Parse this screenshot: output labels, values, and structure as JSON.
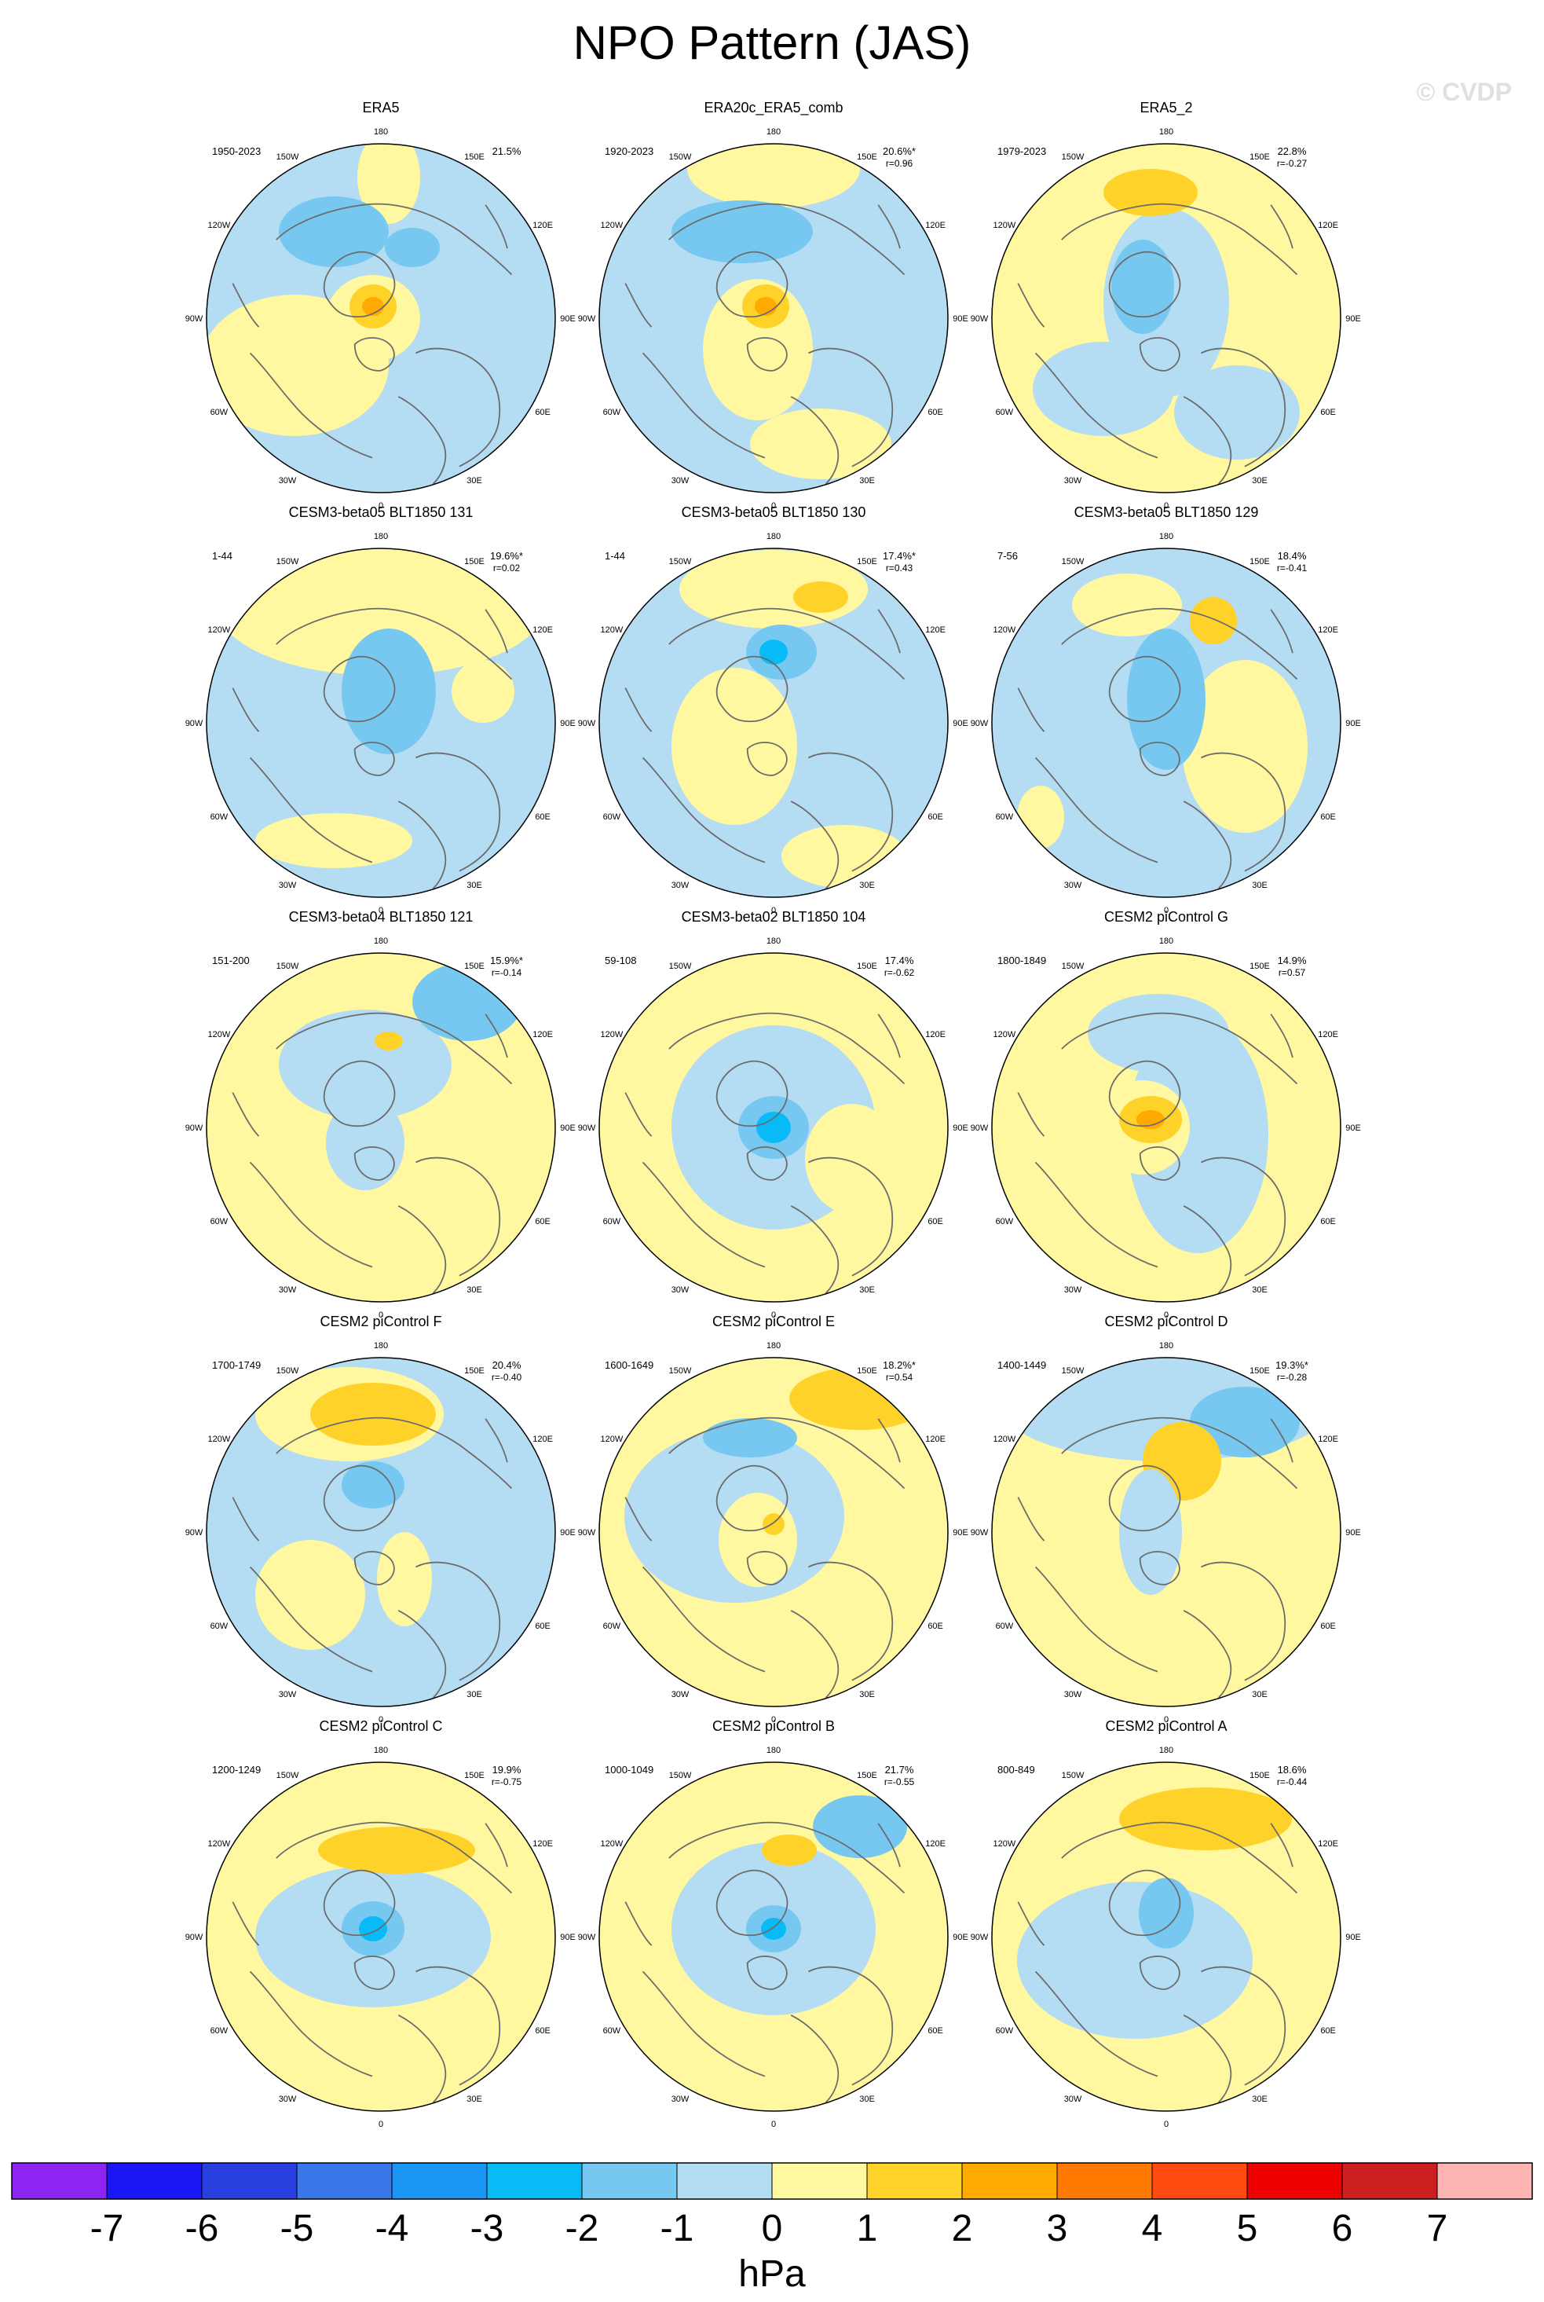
{
  "title": "NPO Pattern (JAS)",
  "watermark": "© CVDP",
  "colorbar": {
    "unit": "hPa",
    "tick_labels": [
      "-7",
      "-6",
      "-5",
      "-4",
      "-3",
      "-2",
      "-1",
      "0",
      "1",
      "2",
      "3",
      "4",
      "5",
      "6",
      "7"
    ],
    "colors": [
      "#8c24f2",
      "#1a16f5",
      "#2a3fe0",
      "#3a78ea",
      "#1c96f5",
      "#08baf5",
      "#77c8f0",
      "#b4dcf2",
      "#fff8a0",
      "#ffd22a",
      "#ffaa00",
      "#ff7a00",
      "#ff4a10",
      "#ee0000",
      "#cc2020",
      "#ffb4b4"
    ]
  },
  "longitude_labels": [
    "180",
    "150E",
    "120E",
    "90E",
    "60E",
    "30E",
    "0",
    "30W",
    "60W",
    "90W",
    "120W",
    "150W"
  ],
  "panels": [
    {
      "title": "ERA5",
      "period": "1950-2023",
      "pct": "21.5%",
      "r": ""
    },
    {
      "title": "ERA20c_ERA5_comb",
      "period": "1920-2023",
      "pct": "20.6%*",
      "r": "r=0.96"
    },
    {
      "title": "ERA5_2",
      "period": "1979-2023",
      "pct": "22.8%",
      "r": "r=-0.27"
    },
    {
      "title": "CESM3-beta05 BLT1850 131",
      "period": "1-44",
      "pct": "19.6%*",
      "r": "r=0.02"
    },
    {
      "title": "CESM3-beta05 BLT1850 130",
      "period": "1-44",
      "pct": "17.4%*",
      "r": "r=0.43"
    },
    {
      "title": "CESM3-beta05 BLT1850 129",
      "period": "7-56",
      "pct": "18.4%",
      "r": "r=-0.41"
    },
    {
      "title": "CESM3-beta04 BLT1850 121",
      "period": "151-200",
      "pct": "15.9%*",
      "r": "r=-0.14"
    },
    {
      "title": "CESM3-beta02 BLT1850 104",
      "period": "59-108",
      "pct": "17.4%",
      "r": "r=-0.62"
    },
    {
      "title": "CESM2 piControl G",
      "period": "1800-1849",
      "pct": "14.9%",
      "r": "r=0.57"
    },
    {
      "title": "CESM2 piControl F",
      "period": "1700-1749",
      "pct": "20.4%",
      "r": "r=-0.40"
    },
    {
      "title": "CESM2 piControl E",
      "period": "1600-1649",
      "pct": "18.2%*",
      "r": "r=0.54"
    },
    {
      "title": "CESM2 piControl D",
      "period": "1400-1449",
      "pct": "19.3%*",
      "r": "r=-0.28"
    },
    {
      "title": "CESM2 piControl C",
      "period": "1200-1249",
      "pct": "19.9%",
      "r": "r=-0.75"
    },
    {
      "title": "CESM2 piControl B",
      "period": "1000-1049",
      "pct": "21.7%",
      "r": "r=-0.55"
    },
    {
      "title": "CESM2 piControl A",
      "period": "800-849",
      "pct": "18.6%",
      "r": "r=-0.44"
    }
  ]
}
